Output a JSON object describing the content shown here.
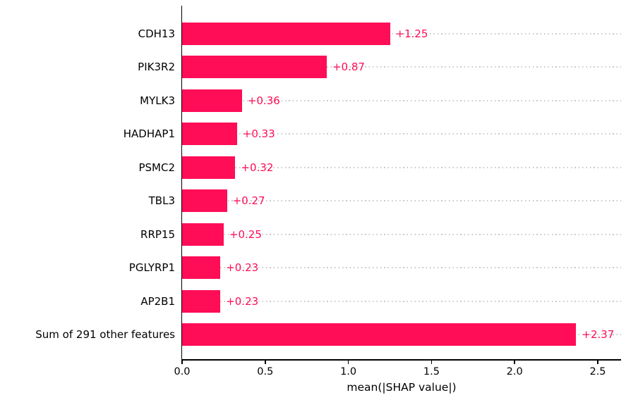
{
  "chart_data": {
    "type": "bar",
    "orientation": "horizontal",
    "title": "",
    "xlabel": "mean(|SHAP value|)",
    "ylabel": "",
    "categories": [
      "CDH13",
      "PIK3R2",
      "MYLK3",
      "HADHAP1",
      "PSMC2",
      "TBL3",
      "RRP15",
      "PGLYRP1",
      "AP2B1",
      "Sum of 291 other features"
    ],
    "values": [
      1.25,
      0.87,
      0.36,
      0.33,
      0.32,
      0.27,
      0.25,
      0.23,
      0.23,
      2.37
    ],
    "value_labels": [
      "+1.25",
      "+0.87",
      "+0.36",
      "+0.33",
      "+0.32",
      "+0.27",
      "+0.25",
      "+0.23",
      "+0.23",
      "+2.37"
    ],
    "x_ticks": [
      "0.0",
      "0.5",
      "1.0",
      "1.5",
      "2.0",
      "2.5"
    ],
    "x_tick_values": [
      0.0,
      0.5,
      1.0,
      1.5,
      2.0,
      2.5
    ],
    "xlim": [
      0,
      2.64
    ],
    "grid": "horizontal-dotted",
    "legend": "none",
    "bar_color": "#ff0d57",
    "value_label_color": "#ff0d57",
    "grid_color": "#c9c9c9",
    "axis_color": "#000000",
    "text_color": "#000000"
  }
}
